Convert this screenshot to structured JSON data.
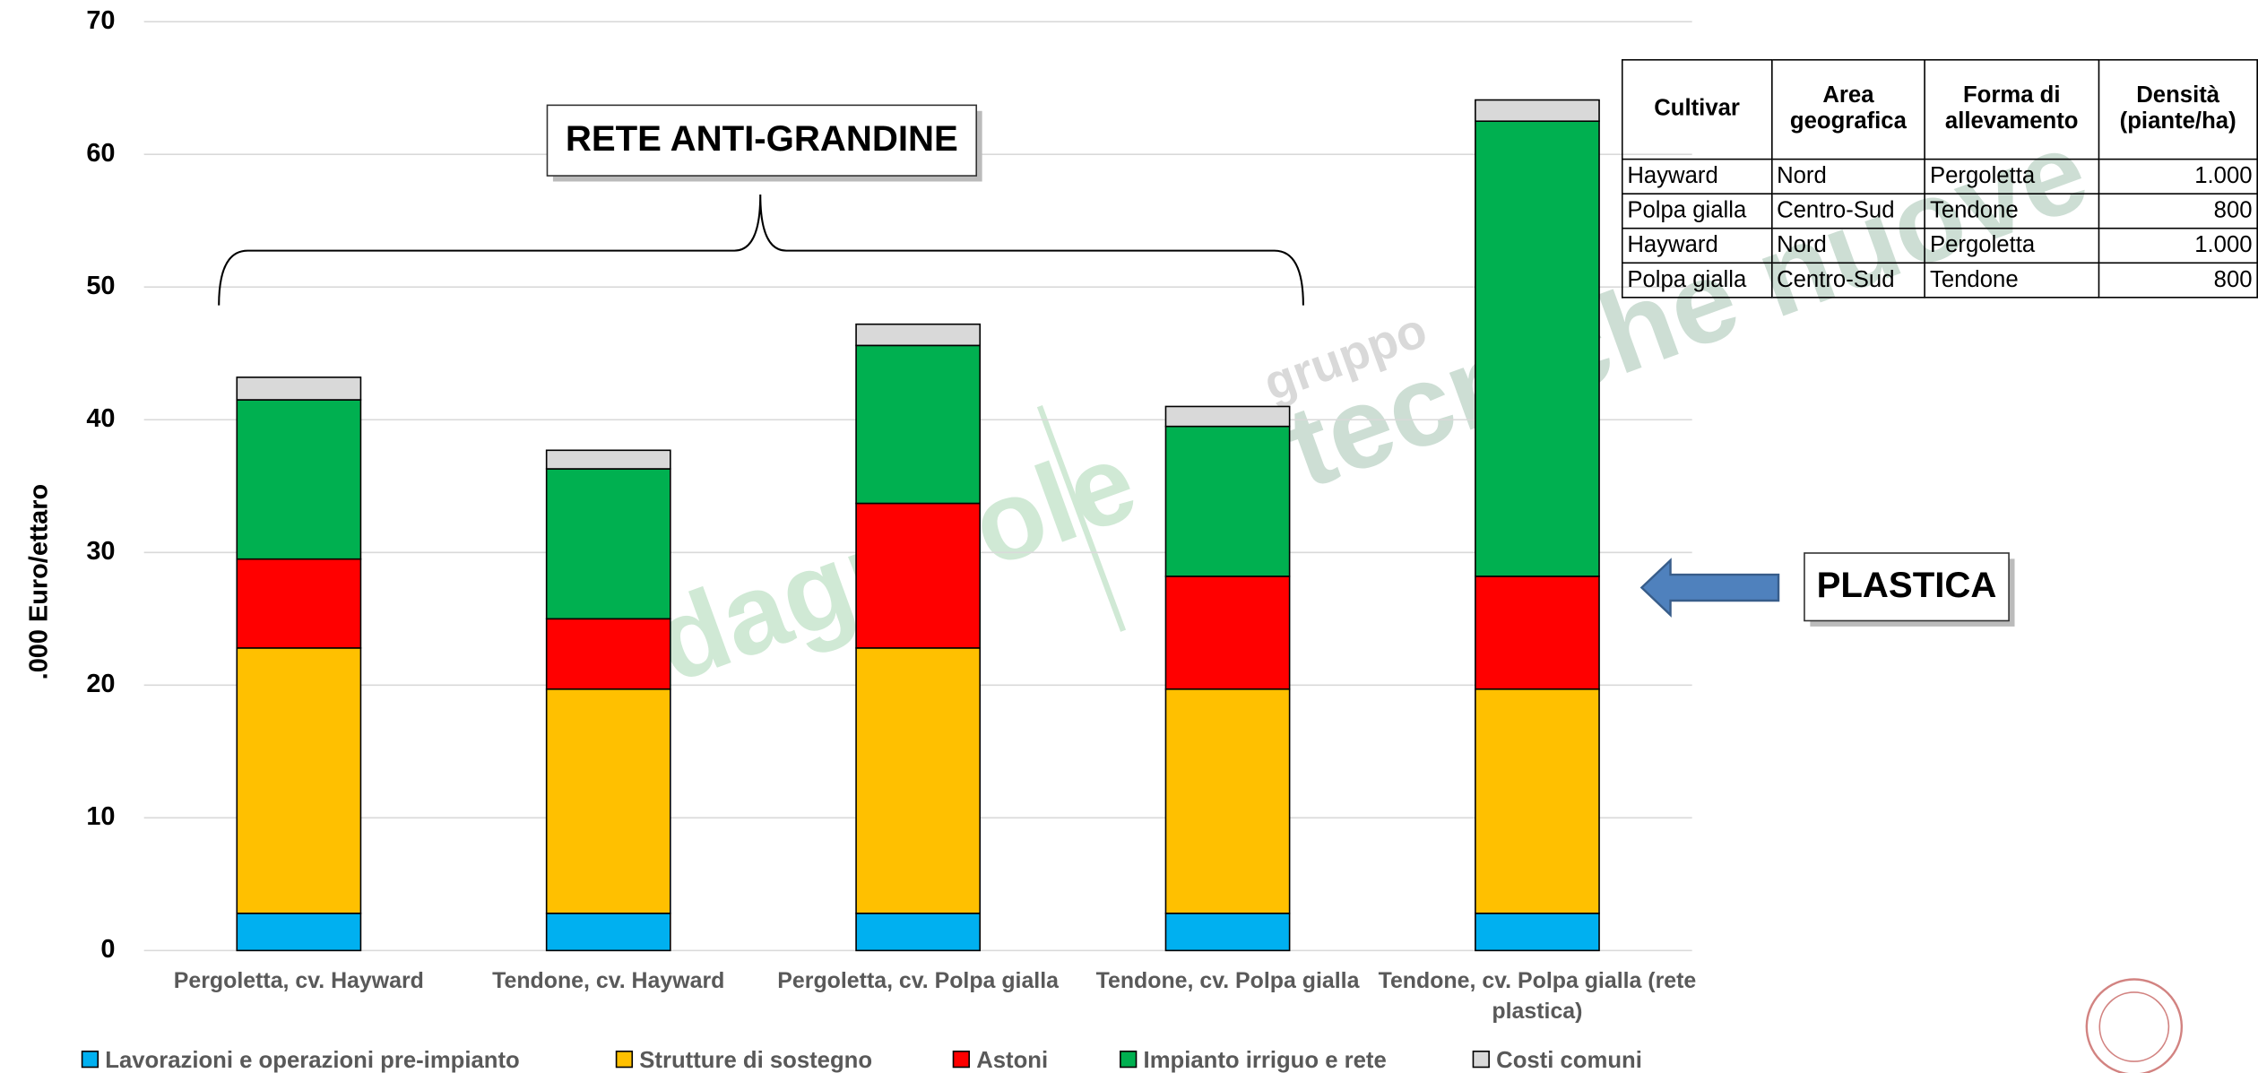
{
  "chart_data": {
    "type": "stacked-bar",
    "ylabel": ".000 Euro/ettaro",
    "categories": [
      "Pergoletta, cv. Hayward",
      "Tendone, cv. Hayward",
      "Pergoletta, cv. Polpa gialla",
      "Tendone, cv. Polpa gialla",
      "Tendone, cv. Polpa gialla (rete plastica)"
    ],
    "series": [
      {
        "name": "Lavorazioni e operazioni pre-impianto",
        "color": "#00b0f0",
        "values": [
          2.8,
          2.8,
          2.8,
          2.8,
          2.8
        ]
      },
      {
        "name": "Strutture di sostegno",
        "color": "#ffc000",
        "values": [
          20.0,
          16.9,
          20.0,
          16.9,
          16.9
        ]
      },
      {
        "name": "Astoni",
        "color": "#ff0000",
        "values": [
          6.7,
          5.3,
          10.9,
          8.5,
          8.5
        ]
      },
      {
        "name": "Impianto irriguo e rete",
        "color": "#00b050",
        "values": [
          12.0,
          11.3,
          11.9,
          11.3,
          34.3
        ]
      },
      {
        "name": "Costi comuni",
        "color": "#d9d9d9",
        "values": [
          1.7,
          1.4,
          1.6,
          1.5,
          1.6
        ]
      }
    ],
    "ylim": [
      0,
      70
    ],
    "yticks": [
      0,
      10,
      20,
      30,
      40,
      50,
      60,
      70
    ],
    "grid": true,
    "legend": "bottom",
    "annotations": [
      "RETE ANTI-GRANDINE",
      "PLASTICA"
    ]
  },
  "table": {
    "header": [
      "Cultivar",
      "Area geografica",
      "Forma di allevamento",
      "Densità (piante/ha)"
    ],
    "rows": [
      [
        "Hayward",
        "Nord",
        "Pergoletta",
        "1.000"
      ],
      [
        "Polpa gialla",
        "Centro-Sud",
        "Tendone",
        "800"
      ],
      [
        "Hayward",
        "Nord",
        "Pergoletta",
        "1.000"
      ],
      [
        "Polpa gialla",
        "Centro-Sud",
        "Tendone",
        "800"
      ]
    ]
  },
  "watermark": [
    "edagricole",
    "gruppo",
    "tecniche nuove"
  ]
}
